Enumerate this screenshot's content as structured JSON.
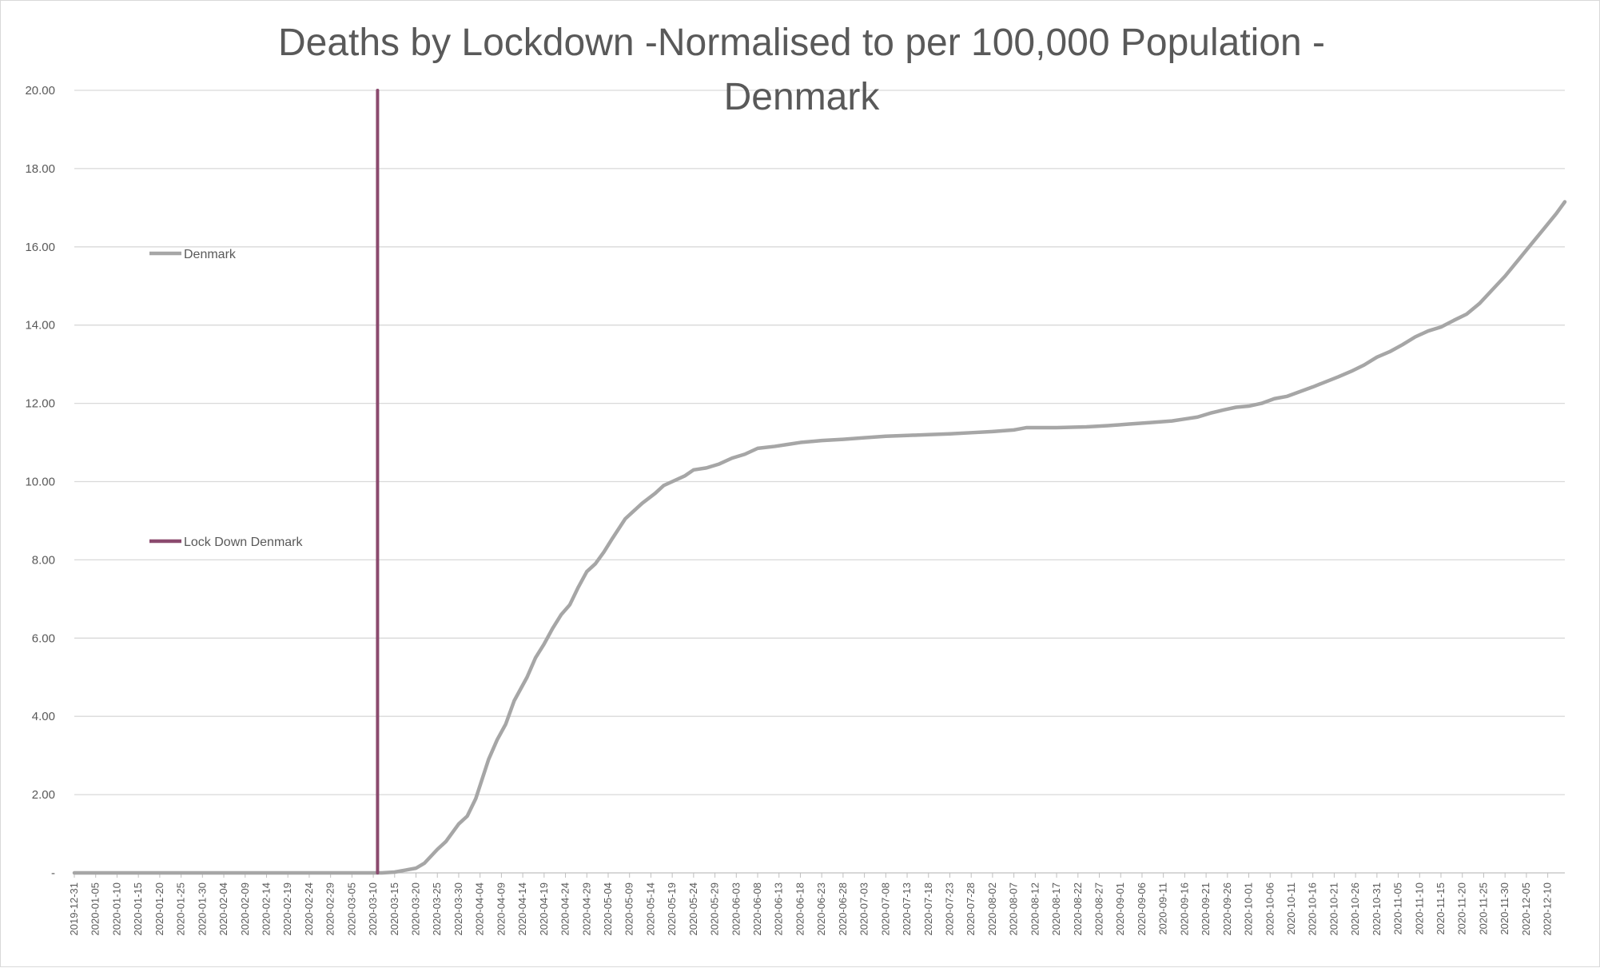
{
  "chart_data": {
    "type": "line",
    "title_lines": [
      "Deaths by Lockdown -Normalised to per 100,000 Population -",
      "Denmark"
    ],
    "xlabel": "",
    "ylabel": "",
    "ylim": [
      0,
      20
    ],
    "y_ticks": [
      "-",
      "2.00",
      "4.00",
      "6.00",
      "8.00",
      "10.00",
      "12.00",
      "14.00",
      "16.00",
      "18.00",
      "20.00"
    ],
    "grid": true,
    "x_start": "2019-12-31",
    "x_end": "2020-12-14",
    "x_tick_labels": [
      "2019-12-31",
      "2020-01-05",
      "2020-01-10",
      "2020-01-15",
      "2020-01-20",
      "2020-01-25",
      "2020-01-30",
      "2020-02-04",
      "2020-02-09",
      "2020-02-14",
      "2020-02-19",
      "2020-02-24",
      "2020-02-29",
      "2020-03-05",
      "2020-03-10",
      "2020-03-15",
      "2020-03-20",
      "2020-03-25",
      "2020-03-30",
      "2020-04-04",
      "2020-04-09",
      "2020-04-14",
      "2020-04-19",
      "2020-04-24",
      "2020-04-29",
      "2020-05-04",
      "2020-05-09",
      "2020-05-14",
      "2020-05-19",
      "2020-05-24",
      "2020-05-29",
      "2020-06-03",
      "2020-06-08",
      "2020-06-13",
      "2020-06-18",
      "2020-06-23",
      "2020-06-28",
      "2020-07-03",
      "2020-07-08",
      "2020-07-13",
      "2020-07-18",
      "2020-07-23",
      "2020-07-28",
      "2020-08-02",
      "2020-08-07",
      "2020-08-12",
      "2020-08-17",
      "2020-08-22",
      "2020-08-27",
      "2020-09-01",
      "2020-09-06",
      "2020-09-11",
      "2020-09-16",
      "2020-09-21",
      "2020-09-26",
      "2020-10-01",
      "2020-10-06",
      "2020-10-11",
      "2020-10-16",
      "2020-10-21",
      "2020-10-26",
      "2020-10-31",
      "2020-11-05",
      "2020-11-10",
      "2020-11-15",
      "2020-11-20",
      "2020-11-25",
      "2020-11-30",
      "2020-12-05",
      "2020-12-10"
    ],
    "series": [
      {
        "name": "Denmark",
        "color": "#a6a6a6",
        "points": [
          [
            "2019-12-31",
            0
          ],
          [
            "2020-03-12",
            0
          ],
          [
            "2020-03-15",
            0.02
          ],
          [
            "2020-03-18",
            0.08
          ],
          [
            "2020-03-20",
            0.12
          ],
          [
            "2020-03-22",
            0.25
          ],
          [
            "2020-03-25",
            0.6
          ],
          [
            "2020-03-27",
            0.8
          ],
          [
            "2020-03-30",
            1.25
          ],
          [
            "2020-04-01",
            1.45
          ],
          [
            "2020-04-03",
            1.9
          ],
          [
            "2020-04-06",
            2.9
          ],
          [
            "2020-04-08",
            3.4
          ],
          [
            "2020-04-10",
            3.8
          ],
          [
            "2020-04-12",
            4.4
          ],
          [
            "2020-04-15",
            5.0
          ],
          [
            "2020-04-17",
            5.5
          ],
          [
            "2020-04-19",
            5.85
          ],
          [
            "2020-04-21",
            6.25
          ],
          [
            "2020-04-23",
            6.6
          ],
          [
            "2020-04-25",
            6.85
          ],
          [
            "2020-04-27",
            7.3
          ],
          [
            "2020-04-29",
            7.7
          ],
          [
            "2020-05-01",
            7.9
          ],
          [
            "2020-05-03",
            8.2
          ],
          [
            "2020-05-05",
            8.55
          ],
          [
            "2020-05-08",
            9.05
          ],
          [
            "2020-05-10",
            9.25
          ],
          [
            "2020-05-12",
            9.45
          ],
          [
            "2020-05-15",
            9.7
          ],
          [
            "2020-05-17",
            9.9
          ],
          [
            "2020-05-19",
            10.0
          ],
          [
            "2020-05-22",
            10.15
          ],
          [
            "2020-05-24",
            10.3
          ],
          [
            "2020-05-27",
            10.35
          ],
          [
            "2020-05-30",
            10.45
          ],
          [
            "2020-06-02",
            10.6
          ],
          [
            "2020-06-05",
            10.7
          ],
          [
            "2020-06-08",
            10.85
          ],
          [
            "2020-06-12",
            10.9
          ],
          [
            "2020-06-15",
            10.95
          ],
          [
            "2020-06-18",
            11.0
          ],
          [
            "2020-06-23",
            11.05
          ],
          [
            "2020-06-28",
            11.08
          ],
          [
            "2020-07-03",
            11.12
          ],
          [
            "2020-07-08",
            11.16
          ],
          [
            "2020-07-13",
            11.18
          ],
          [
            "2020-07-18",
            11.2
          ],
          [
            "2020-07-23",
            11.22
          ],
          [
            "2020-07-28",
            11.25
          ],
          [
            "2020-08-02",
            11.28
          ],
          [
            "2020-08-07",
            11.32
          ],
          [
            "2020-08-10",
            11.38
          ],
          [
            "2020-08-17",
            11.38
          ],
          [
            "2020-08-24",
            11.4
          ],
          [
            "2020-08-29",
            11.43
          ],
          [
            "2020-09-03",
            11.47
          ],
          [
            "2020-09-08",
            11.51
          ],
          [
            "2020-09-13",
            11.55
          ],
          [
            "2020-09-16",
            11.6
          ],
          [
            "2020-09-19",
            11.65
          ],
          [
            "2020-09-22",
            11.75
          ],
          [
            "2020-09-25",
            11.83
          ],
          [
            "2020-09-28",
            11.9
          ],
          [
            "2020-10-01",
            11.93
          ],
          [
            "2020-10-04",
            12.0
          ],
          [
            "2020-10-07",
            12.12
          ],
          [
            "2020-10-10",
            12.18
          ],
          [
            "2020-10-13",
            12.3
          ],
          [
            "2020-10-16",
            12.42
          ],
          [
            "2020-10-19",
            12.55
          ],
          [
            "2020-10-22",
            12.68
          ],
          [
            "2020-10-25",
            12.82
          ],
          [
            "2020-10-28",
            12.98
          ],
          [
            "2020-10-31",
            13.18
          ],
          [
            "2020-11-03",
            13.32
          ],
          [
            "2020-11-06",
            13.5
          ],
          [
            "2020-11-09",
            13.7
          ],
          [
            "2020-11-12",
            13.85
          ],
          [
            "2020-11-15",
            13.95
          ],
          [
            "2020-11-18",
            14.12
          ],
          [
            "2020-11-21",
            14.28
          ],
          [
            "2020-11-24",
            14.55
          ],
          [
            "2020-11-27",
            14.9
          ],
          [
            "2020-11-30",
            15.25
          ],
          [
            "2020-12-03",
            15.65
          ],
          [
            "2020-12-06",
            16.05
          ],
          [
            "2020-12-09",
            16.45
          ],
          [
            "2020-12-12",
            16.85
          ],
          [
            "2020-12-14",
            17.15
          ]
        ]
      },
      {
        "name": "Lock Down Denmark",
        "color": "#8b4a6e",
        "points": [
          [
            "2020-03-11",
            0
          ],
          [
            "2020-03-11",
            20
          ]
        ]
      }
    ],
    "legend": [
      {
        "name": "Denmark",
        "color": "#a6a6a6"
      },
      {
        "name": "Lock Down Denmark",
        "color": "#8b4a6e"
      }
    ],
    "legend_placement": "left, inside plot"
  }
}
